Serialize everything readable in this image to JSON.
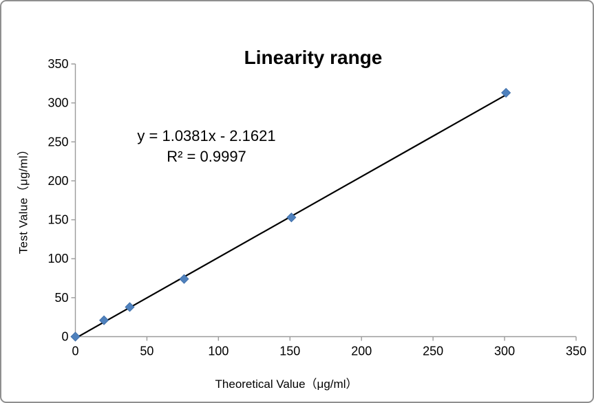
{
  "window": {
    "background": "#ffffff",
    "frame_border_color": "#8f8f8f"
  },
  "chart_data": {
    "type": "scatter",
    "title": "Linearity range",
    "xlabel": "Theoretical Value（μg/ml）",
    "ylabel": "Test Value（μg/ml）",
    "xlim": [
      0,
      350
    ],
    "ylim": [
      0,
      350
    ],
    "x_ticks": [
      0,
      50,
      100,
      150,
      200,
      250,
      300,
      350
    ],
    "y_ticks": [
      0,
      50,
      100,
      150,
      200,
      250,
      300,
      350
    ],
    "grid": false,
    "legend_position": "none",
    "axis_color": "#9b9b9b",
    "tick_label_color": "#000000",
    "series": [
      {
        "name": "Test Value",
        "marker": "diamond",
        "color": "#4F81BD",
        "marker_edge_color": "#3a6aa5",
        "points": [
          [
            0,
            0
          ],
          [
            20,
            21
          ],
          [
            38,
            38
          ],
          [
            76,
            74
          ],
          [
            151,
            153
          ],
          [
            301,
            313
          ]
        ]
      }
    ],
    "trendline": {
      "type": "linear",
      "color": "#000000",
      "slope": 1.0381,
      "intercept": -2.1621,
      "x_start": 2,
      "x_end": 300.5,
      "equation_label": "y = 1.0381x - 2.1621",
      "r2_label": "R² = 0.9997"
    }
  }
}
